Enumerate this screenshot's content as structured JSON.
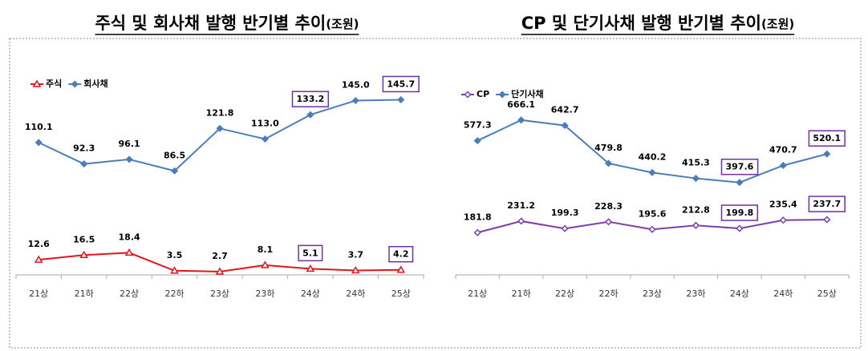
{
  "chart_data": [
    {
      "type": "line",
      "title": "주식 및 회사채 발행 반기별 추이",
      "unit": "(조원)",
      "categories": [
        "21상",
        "21하",
        "22상",
        "22하",
        "23상",
        "23하",
        "24상",
        "24하",
        "25상"
      ],
      "ylim": [
        0,
        160
      ],
      "legend": "top-left",
      "series": [
        {
          "name": "주식",
          "color": "#e3141b",
          "marker": "triangle",
          "values": [
            12.6,
            16.5,
            18.4,
            3.5,
            2.7,
            8.1,
            5.1,
            3.7,
            4.2
          ],
          "value_labels": [
            "12.6",
            "16.5",
            "18.4",
            "3.5",
            "2.7",
            "8.1",
            "5.1",
            "3.7",
            "4.2"
          ],
          "highlight": [
            6,
            8
          ]
        },
        {
          "name": "회사채",
          "color": "#4a7ebb",
          "marker": "diamond",
          "values": [
            110.1,
            92.3,
            96.1,
            86.5,
            121.8,
            113.0,
            133.2,
            145.0,
            145.7
          ],
          "value_labels": [
            "110.1",
            "92.3",
            "96.1",
            "86.5",
            "121.8",
            "113.0",
            "133.2",
            "145.0",
            "145.7"
          ],
          "highlight": [
            6,
            8
          ]
        }
      ]
    },
    {
      "type": "line",
      "title": "CP 및 단기사채 발행 반기별 추이",
      "unit": "(조원)",
      "categories": [
        "21상",
        "21하",
        "22상",
        "22하",
        "23상",
        "23하",
        "24상",
        "24하",
        "25상"
      ],
      "ylim": [
        0,
        700
      ],
      "legend": "top-left",
      "series": [
        {
          "name": "CP",
          "color": "#7d3fa8",
          "marker": "hollow-diamond",
          "values": [
            181.8,
            231.2,
            199.3,
            228.3,
            195.6,
            212.8,
            199.8,
            235.4,
            237.7
          ],
          "value_labels": [
            "181.8",
            "231.2",
            "199.3",
            "228.3",
            "195.6",
            "212.8",
            "199.8",
            "235.4",
            "237.7"
          ],
          "highlight": [
            6,
            8
          ]
        },
        {
          "name": "단기사채",
          "color": "#4a7ebb",
          "marker": "diamond",
          "values": [
            577.3,
            666.1,
            642.7,
            479.8,
            440.2,
            415.3,
            397.6,
            470.7,
            520.1
          ],
          "value_labels": [
            "577.3",
            "666.1",
            "642.7",
            "479.8",
            "440.2",
            "415.3",
            "397.6",
            "470.7",
            "520.1"
          ],
          "highlight": [
            6,
            8
          ]
        }
      ]
    }
  ]
}
